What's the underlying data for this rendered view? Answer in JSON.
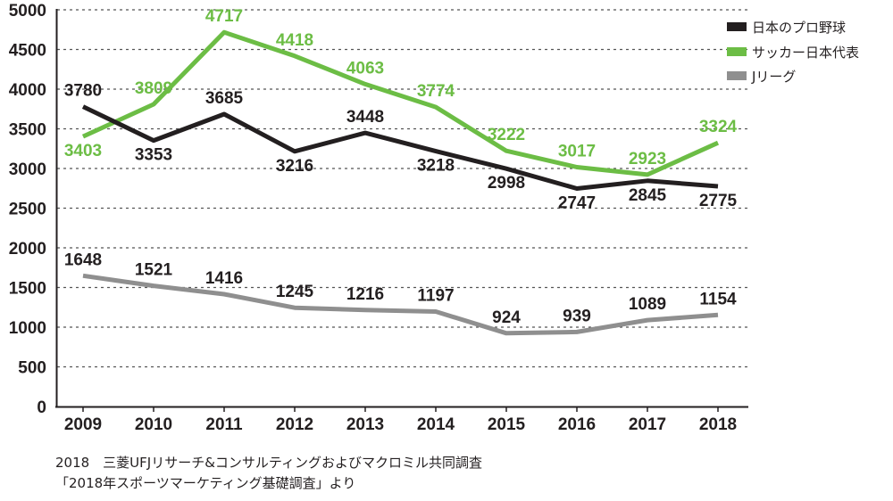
{
  "chart_data": {
    "type": "line",
    "x": [
      "2009",
      "2010",
      "2011",
      "2012",
      "2013",
      "2014",
      "2015",
      "2016",
      "2017",
      "2018"
    ],
    "ylim": [
      0,
      5000
    ],
    "yticks": [
      "0",
      "500",
      "1000",
      "1500",
      "2000",
      "2500",
      "3000",
      "3500",
      "4000",
      "4500",
      "5000"
    ],
    "grid": "horizontal dotted",
    "legend_position": "top-right",
    "series": [
      {
        "name": "日本のプロ野球",
        "color": "#231f20",
        "values": [
          3780,
          3353,
          3685,
          3216,
          3448,
          3218,
          2998,
          2747,
          2845,
          2775
        ],
        "labels": [
          "3780",
          "3353",
          "3685",
          "3216",
          "3448",
          "3218",
          "2998",
          "2747",
          "2845",
          "2775"
        ]
      },
      {
        "name": "サッカー日本代表",
        "color": "#6cbd45",
        "values": [
          3403,
          3809,
          4717,
          4418,
          4063,
          3774,
          3222,
          3017,
          2923,
          3324
        ],
        "labels": [
          "3403",
          "3809",
          "4717",
          "4418",
          "4063",
          "3774",
          "3222",
          "3017",
          "2923",
          "3324"
        ]
      },
      {
        "name": "Jリーグ",
        "color": "#8f8f8f",
        "values": [
          1648,
          1521,
          1416,
          1245,
          1216,
          1197,
          924,
          939,
          1089,
          1154
        ],
        "labels": [
          "1648",
          "1521",
          "1416",
          "1245",
          "1216",
          "1197",
          "924",
          "939",
          "1089",
          "1154"
        ]
      }
    ]
  },
  "source": {
    "line1": "2018　三菱UFJリサーチ&コンサルティングおよびマクロミル共同調査",
    "line2": "「2018年スポーツマーケティング基礎調査」より"
  }
}
